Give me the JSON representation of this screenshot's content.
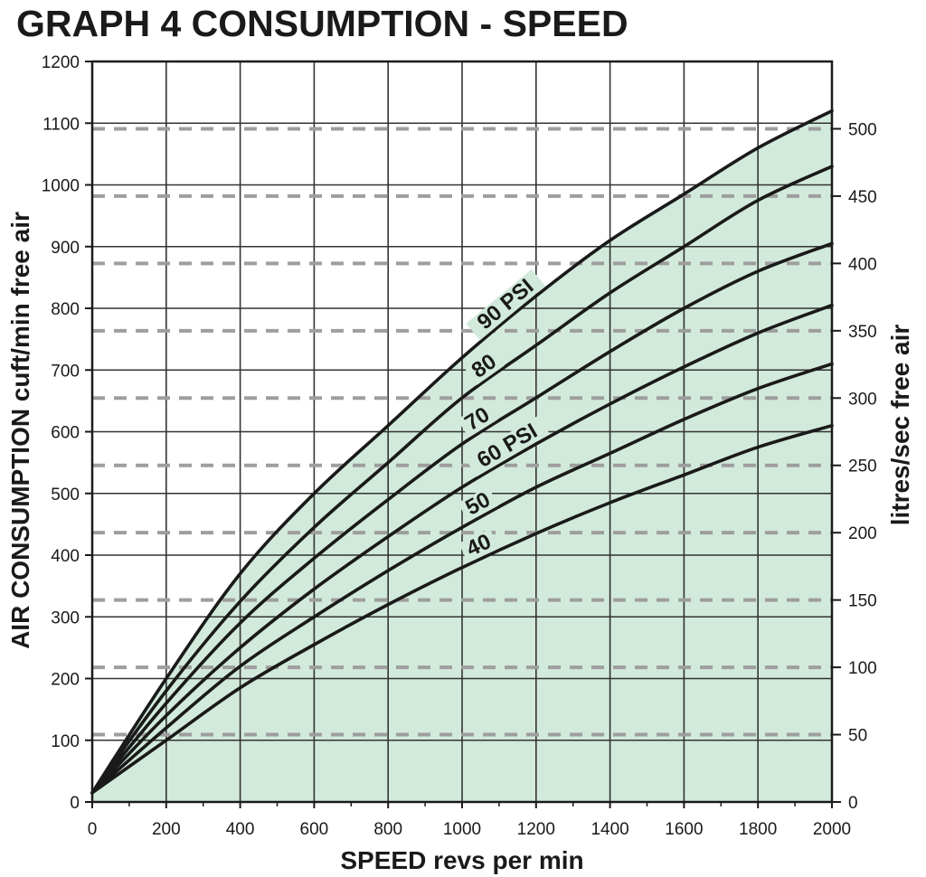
{
  "chart_data": {
    "type": "line",
    "title": "GRAPH 4 CONSUMPTION - SPEED",
    "xlabel": "SPEED revs per min",
    "ylabel": "AIR CONSUMPTION cuft/min free air",
    "y2label": "litres/sec free air",
    "xlim": [
      0,
      2000
    ],
    "ylim": [
      0,
      1200
    ],
    "y2lim": [
      0,
      550
    ],
    "x_ticks": [
      "0",
      "200",
      "400",
      "600",
      "800",
      "1000",
      "1200",
      "1400",
      "1600",
      "1800",
      "2000"
    ],
    "y_ticks": [
      "0",
      "100",
      "200",
      "300",
      "400",
      "500",
      "600",
      "700",
      "800",
      "900",
      "1000",
      "1100",
      "1200"
    ],
    "y2_ticks": [
      "0",
      "50",
      "100",
      "150",
      "200",
      "250",
      "300",
      "350",
      "400",
      "450",
      "500"
    ],
    "grid": true,
    "fill_color": "#d2eadb",
    "line_color": "#1a1a1a",
    "grid_color": "#333333",
    "dash_color": "#9e9e9e",
    "x": [
      0,
      200,
      400,
      600,
      800,
      1000,
      1200,
      1400,
      1600,
      1800,
      2000
    ],
    "series": [
      {
        "name": "90 PSI",
        "values": [
          15,
          200,
          370,
          500,
          610,
          720,
          820,
          910,
          985,
          1060,
          1120
        ]
      },
      {
        "name": "80",
        "values": [
          15,
          180,
          325,
          445,
          550,
          655,
          740,
          825,
          900,
          975,
          1030
        ]
      },
      {
        "name": "70",
        "values": [
          15,
          160,
          290,
          395,
          490,
          580,
          655,
          730,
          800,
          860,
          905
        ]
      },
      {
        "name": "60 PSI",
        "values": [
          15,
          140,
          250,
          345,
          430,
          510,
          580,
          645,
          705,
          760,
          805
        ]
      },
      {
        "name": "50",
        "values": [
          15,
          120,
          220,
          300,
          375,
          445,
          510,
          565,
          620,
          670,
          710
        ]
      },
      {
        "name": "40",
        "values": [
          15,
          100,
          185,
          255,
          320,
          380,
          435,
          485,
          530,
          575,
          610
        ]
      }
    ]
  }
}
